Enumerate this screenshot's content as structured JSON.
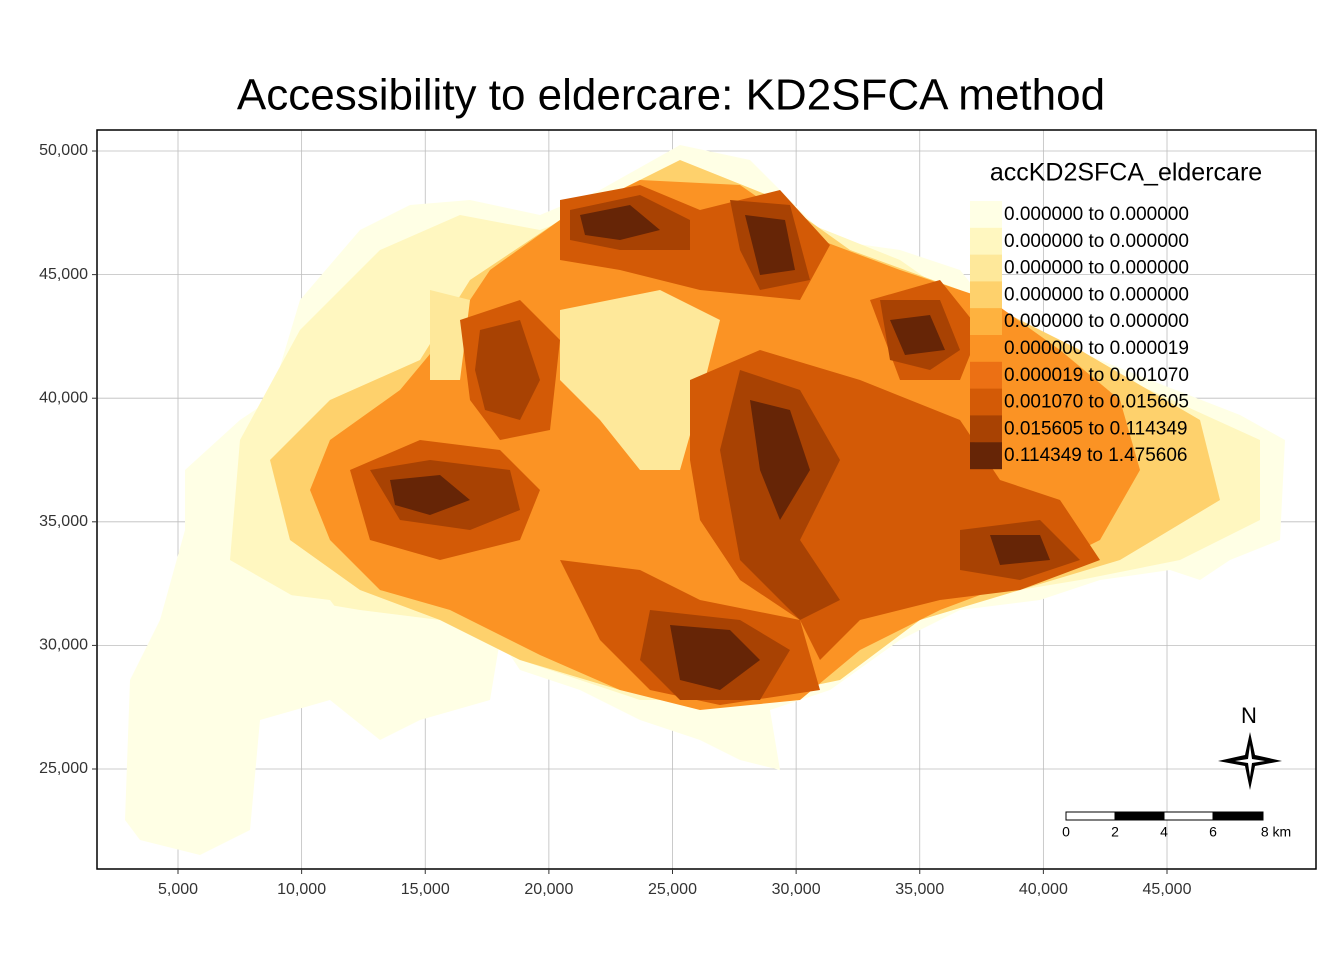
{
  "map": {
    "title": "Accessibility to eldercare: KD2SFCA method",
    "xlim": [
      1724,
      51026
    ],
    "ylim": [
      20955,
      50850
    ],
    "xticks": [
      {
        "value": 5000,
        "label": "5,000"
      },
      {
        "value": 10000,
        "label": "10,000"
      },
      {
        "value": 15000,
        "label": "15,000"
      },
      {
        "value": 20000,
        "label": "20,000"
      },
      {
        "value": 25000,
        "label": "25,000"
      },
      {
        "value": 30000,
        "label": "30,000"
      },
      {
        "value": 35000,
        "label": "35,000"
      },
      {
        "value": 40000,
        "label": "40,000"
      },
      {
        "value": 45000,
        "label": "45,000"
      }
    ],
    "yticks": [
      {
        "value": 25000,
        "label": "25,000"
      },
      {
        "value": 30000,
        "label": "30,000"
      },
      {
        "value": 35000,
        "label": "35,000"
      },
      {
        "value": 40000,
        "label": "40,000"
      },
      {
        "value": 45000,
        "label": "45,000"
      },
      {
        "value": 50000,
        "label": "50,000"
      }
    ],
    "grid": true,
    "legend": {
      "title": "accKD2SFCA_eldercare",
      "items": [
        {
          "label": "0.000000 to 0.000000",
          "color": "#FFFFE5"
        },
        {
          "label": "0.000000 to 0.000000",
          "color": "#FFF7C0"
        },
        {
          "label": "0.000000 to 0.000000",
          "color": "#FEE89A"
        },
        {
          "label": "0.000000 to 0.000000",
          "color": "#FED16C"
        },
        {
          "label": "0.000000 to 0.000000",
          "color": "#FEB23F"
        },
        {
          "label": "0.000000 to 0.000019",
          "color": "#FB9324"
        },
        {
          "label": "0.000019 to 0.001070",
          "color": "#EC7014"
        },
        {
          "label": "0.001070 to 0.015605",
          "color": "#D35A06"
        },
        {
          "label": "0.015605 to 0.114349",
          "color": "#A84203"
        },
        {
          "label": "0.114349 to 1.475606",
          "color": "#662506"
        }
      ]
    },
    "north_label": "N",
    "scale_bar": {
      "labels": [
        "0",
        "2",
        "4",
        "6",
        "8 km"
      ]
    }
  }
}
